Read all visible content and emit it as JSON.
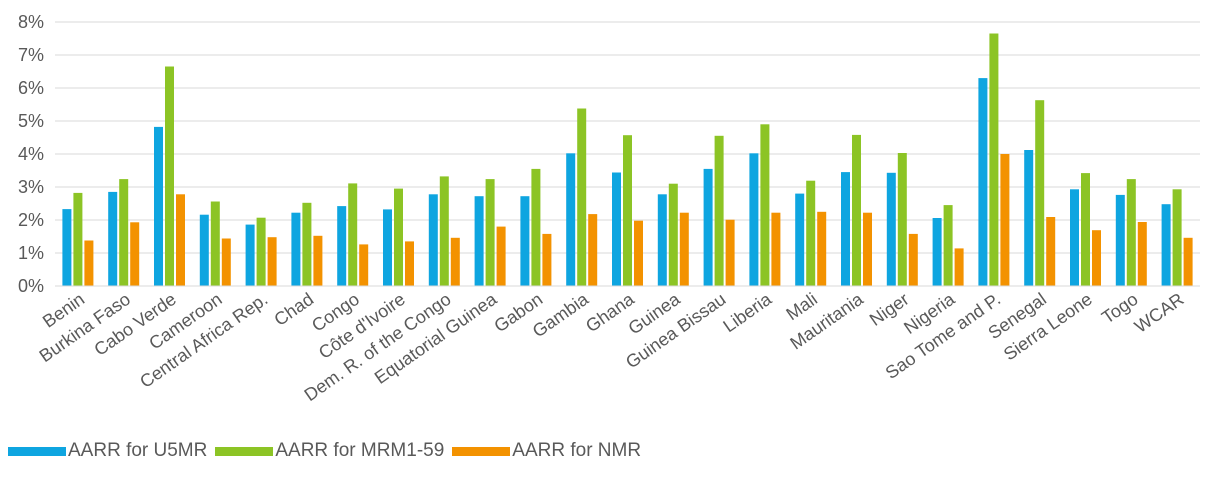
{
  "chart_data": {
    "type": "bar",
    "categories": [
      "Benin",
      "Burkina Faso",
      "Cabo Verde",
      "Cameroon",
      "Central Africa Rep.",
      "Chad",
      "Congo",
      "Côte d'Ivoire",
      "Dem. R. of the Congo",
      "Equatorial Guinea",
      "Gabon",
      "Gambia",
      "Ghana",
      "Guinea",
      "Guinea Bissau",
      "Liberia",
      "Mali",
      "Mauritania",
      "Niger",
      "Nigeria",
      "Sao Tome and P.",
      "Senegal",
      "Sierra Leone",
      "Togo",
      "WCAR"
    ],
    "series": [
      {
        "name": "AARR for U5MR",
        "color": "#0EA5E0",
        "values": [
          2.33,
          2.85,
          4.82,
          2.16,
          1.86,
          2.22,
          2.42,
          2.32,
          2.78,
          2.72,
          2.72,
          4.02,
          3.44,
          2.78,
          3.55,
          4.02,
          2.8,
          3.45,
          3.43,
          2.06,
          6.3,
          4.12,
          2.93,
          2.76,
          2.48
        ]
      },
      {
        "name": "AARR for MRM1-59",
        "color": "#8CC425",
        "values": [
          2.82,
          3.24,
          6.65,
          2.56,
          2.07,
          2.52,
          3.11,
          2.95,
          3.32,
          3.24,
          3.55,
          5.38,
          4.57,
          3.1,
          4.55,
          4.9,
          3.19,
          4.58,
          4.03,
          2.45,
          7.65,
          5.63,
          3.42,
          3.24,
          2.93
        ]
      },
      {
        "name": "AARR for NMR",
        "color": "#F39200",
        "values": [
          1.38,
          1.93,
          2.78,
          1.44,
          1.48,
          1.52,
          1.26,
          1.35,
          1.46,
          1.8,
          1.58,
          2.18,
          1.98,
          2.22,
          2.01,
          2.22,
          2.25,
          2.22,
          1.58,
          1.14,
          4.0,
          2.09,
          1.69,
          1.94,
          1.46
        ]
      }
    ],
    "ylim": [
      0,
      8
    ],
    "y_tick_labels": [
      "0%",
      "1%",
      "2%",
      "3%",
      "4%",
      "5%",
      "6%",
      "7%",
      "8%"
    ],
    "grid": true,
    "legend_position": "bottom-left",
    "title": "",
    "xlabel": "",
    "ylabel": ""
  }
}
